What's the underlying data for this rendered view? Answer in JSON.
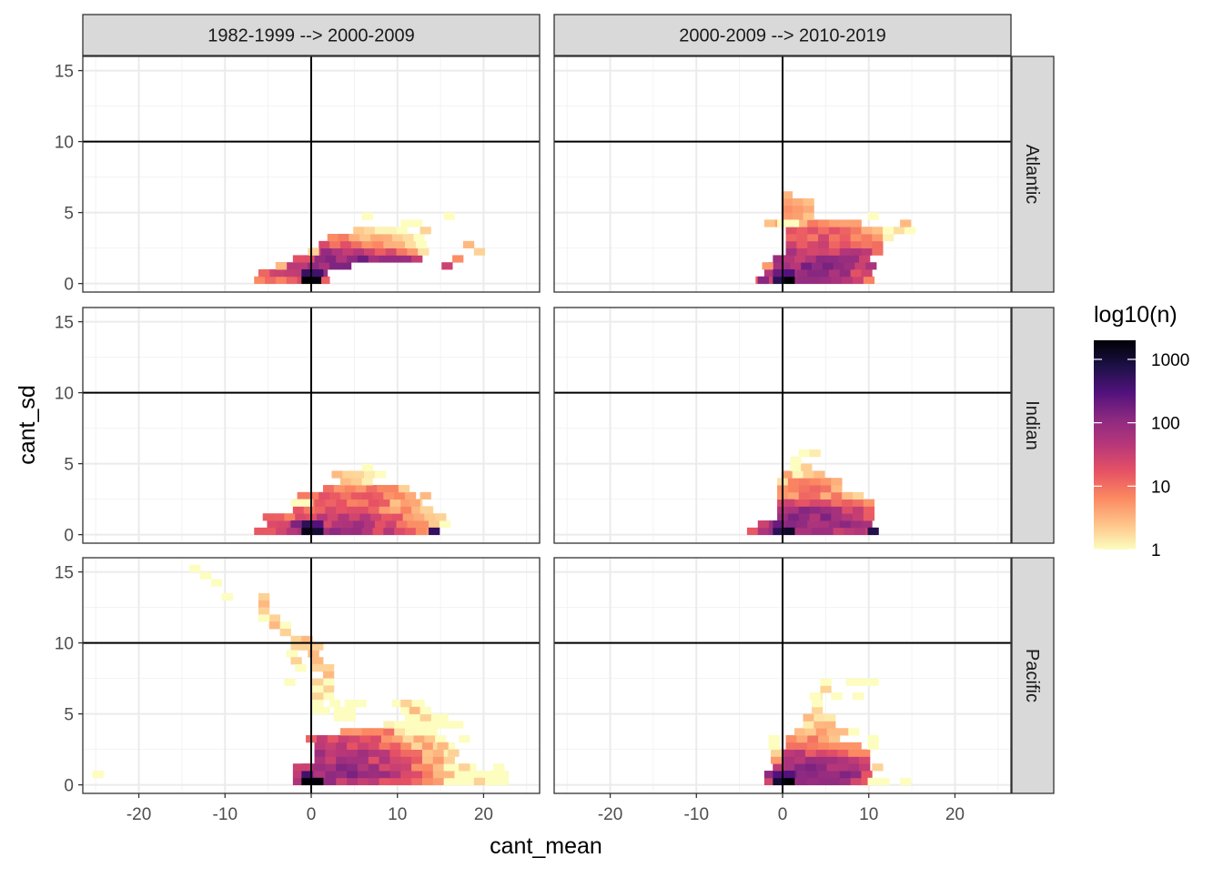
{
  "chart_data": {
    "type": "heatmap",
    "subtype": "faceted 2d-bin heatmap",
    "xlabel": "cant_mean",
    "ylabel": "cant_sd",
    "xlim": [
      -26.5,
      26.5
    ],
    "ylim": [
      -0.6,
      16.0
    ],
    "x_ticks": [
      -20,
      -10,
      0,
      10,
      20
    ],
    "y_ticks": [
      0,
      5,
      10,
      15
    ],
    "reference_lines": {
      "x": 0,
      "y": 10
    },
    "bin_width": {
      "x": 1.25,
      "y": 0.5
    },
    "facet_cols": [
      "1982-1999 --> 2000-2009",
      "2000-2009 --> 2010-2019"
    ],
    "facet_rows": [
      "Atlantic",
      "Indian",
      "Pacific"
    ],
    "legend": {
      "title": "log10(n)",
      "scale": "log10",
      "position": "right",
      "breaks": [
        1,
        10,
        100,
        1000
      ],
      "range": [
        1,
        2000
      ],
      "palette": [
        "#fcfdbf",
        "#fec287",
        "#fb8761",
        "#e65164",
        "#b73779",
        "#8c2981",
        "#51127c",
        "#1d1147",
        "#000004"
      ]
    },
    "panels": [
      {
        "row": "Atlantic",
        "col": "1982-1999 --> 2000-2009",
        "ranges": [
          [
            0.25,
            -6.0,
            1.5,
            2,
            30
          ],
          [
            0.75,
            -5.0,
            2.0,
            3,
            80
          ],
          [
            1.25,
            -3.5,
            4.0,
            5,
            150
          ],
          [
            1.75,
            -1.5,
            13.0,
            6,
            120
          ],
          [
            2.25,
            0.5,
            14.0,
            2,
            60
          ],
          [
            2.75,
            1.5,
            13.0,
            1.5,
            15
          ],
          [
            3.25,
            2.5,
            12.5,
            1.5,
            10
          ],
          [
            3.75,
            5.5,
            11.5,
            1,
            4
          ],
          [
            4.25,
            11.0,
            12.5,
            1,
            2
          ],
          [
            4.75,
            6.5,
            7.5,
            1,
            1
          ],
          [
            4.75,
            16.0,
            17.0,
            1,
            1
          ]
        ],
        "cells": [
          [
            -0.5,
            0.25,
            2000
          ],
          [
            0.5,
            0.25,
            1800
          ],
          [
            -0.5,
            0.75,
            500
          ],
          [
            0.75,
            0.75,
            400
          ],
          [
            0.25,
            2.25,
            2
          ],
          [
            -3.5,
            1.25,
            3
          ],
          [
            -5.5,
            0.75,
            12
          ],
          [
            19.5,
            2.25,
            2
          ],
          [
            18.25,
            2.75,
            3
          ],
          [
            17.0,
            1.75,
            6
          ],
          [
            15.75,
            1.25,
            30
          ],
          [
            13.25,
            3.75,
            2
          ]
        ]
      },
      {
        "row": "Atlantic",
        "col": "2000-2009 --> 2010-2019",
        "ranges": [
          [
            0.25,
            -2.5,
            10.5,
            3,
            60
          ],
          [
            0.75,
            -1.5,
            10.5,
            3,
            100
          ],
          [
            1.25,
            -1.0,
            10.5,
            4,
            110
          ],
          [
            1.75,
            -0.5,
            10.5,
            4,
            90
          ],
          [
            2.25,
            1.0,
            11.0,
            4,
            60
          ],
          [
            2.75,
            1.0,
            12.0,
            3,
            35
          ],
          [
            3.25,
            1.0,
            12.5,
            3,
            25
          ],
          [
            3.75,
            1.0,
            15.0,
            3,
            15
          ],
          [
            4.25,
            -1.5,
            9.0,
            2,
            8
          ],
          [
            4.75,
            0.5,
            4.0,
            2,
            5
          ],
          [
            5.25,
            0.5,
            4.0,
            1.5,
            4
          ],
          [
            5.75,
            0.5,
            3.0,
            1.5,
            3
          ],
          [
            6.25,
            0.5,
            1.5,
            1,
            2
          ]
        ],
        "cells": [
          [
            0.75,
            0.25,
            2000
          ],
          [
            -0.5,
            0.25,
            600
          ],
          [
            -0.5,
            0.75,
            200
          ],
          [
            0.75,
            0.75,
            300
          ],
          [
            -1.75,
            1.25,
            5
          ],
          [
            -2.25,
            0.25,
            120
          ],
          [
            14.25,
            4.25,
            3
          ],
          [
            10.5,
            4.75,
            1
          ],
          [
            0.0,
            4.25,
            1
          ],
          [
            1.25,
            4.25,
            1
          ]
        ]
      },
      {
        "row": "Indian",
        "col": "1982-1999 --> 2000-2009",
        "ranges": [
          [
            0.25,
            -6.0,
            14.0,
            3,
            70
          ],
          [
            0.75,
            -4.5,
            16.0,
            3,
            60
          ],
          [
            1.25,
            -5.0,
            15.0,
            3,
            40
          ],
          [
            1.75,
            -1.5,
            14.0,
            3,
            25
          ],
          [
            2.25,
            -1.5,
            12.5,
            3,
            20
          ],
          [
            2.75,
            -1.0,
            12.0,
            3,
            15
          ],
          [
            3.25,
            2.0,
            11.0,
            3,
            12
          ],
          [
            3.75,
            4.0,
            6.5,
            1.5,
            4
          ],
          [
            4.25,
            3.0,
            8.5,
            1.5,
            2
          ],
          [
            4.75,
            6.5,
            7.5,
            1,
            1
          ]
        ],
        "cells": [
          [
            -0.5,
            0.25,
            1500
          ],
          [
            0.75,
            0.25,
            1000
          ],
          [
            -0.5,
            0.75,
            600
          ],
          [
            0.75,
            0.75,
            300
          ],
          [
            -1.75,
            0.75,
            150
          ],
          [
            -1.75,
            2.25,
            1
          ],
          [
            -0.5,
            2.25,
            1
          ],
          [
            13.25,
            1.75,
            2
          ],
          [
            14.25,
            0.25,
            500
          ],
          [
            12.0,
            2.25,
            4
          ],
          [
            13.25,
            2.75,
            3
          ]
        ]
      },
      {
        "row": "Indian",
        "col": "2000-2009 --> 2010-2019",
        "ranges": [
          [
            0.25,
            -3.5,
            10.5,
            3,
            80
          ],
          [
            0.75,
            -1.5,
            10.5,
            3,
            120
          ],
          [
            1.25,
            0.0,
            10.5,
            3,
            110
          ],
          [
            1.75,
            0.0,
            10.5,
            3,
            80
          ],
          [
            2.25,
            0.0,
            10.5,
            2,
            25
          ],
          [
            2.75,
            0.0,
            9.0,
            2,
            12
          ],
          [
            3.25,
            0.0,
            6.5,
            2,
            8
          ],
          [
            3.75,
            0.0,
            6.5,
            2,
            5
          ],
          [
            4.25,
            0.5,
            4.5,
            1.5,
            3
          ],
          [
            4.75,
            1.5,
            3.5,
            1,
            2
          ],
          [
            5.25,
            1.5,
            2.5,
            1,
            1
          ],
          [
            5.75,
            2.5,
            4.0,
            1,
            1
          ]
        ],
        "cells": [
          [
            0.75,
            0.25,
            1200
          ],
          [
            -0.5,
            0.25,
            600
          ],
          [
            -0.5,
            0.75,
            200
          ],
          [
            10.5,
            0.25,
            700
          ],
          [
            -2.25,
            0.75,
            30
          ],
          [
            0.75,
            2.25,
            30
          ]
        ]
      },
      {
        "row": "Pacific",
        "col": "1982-1999 --> 2000-2009",
        "ranges": [
          [
            0.25,
            -1.5,
            23.0,
            3,
            80
          ],
          [
            0.75,
            -1.5,
            23.0,
            3,
            120
          ],
          [
            1.25,
            -1.5,
            19.5,
            3,
            100
          ],
          [
            1.75,
            1.0,
            16.0,
            3,
            80
          ],
          [
            2.25,
            1.0,
            16.0,
            3,
            60
          ],
          [
            2.75,
            1.0,
            16.0,
            3,
            40
          ],
          [
            3.25,
            0.0,
            16.0,
            3,
            25
          ],
          [
            3.75,
            4.0,
            15.0,
            3,
            15
          ],
          [
            4.25,
            9.0,
            17.0,
            1.5,
            4
          ],
          [
            4.75,
            11.5,
            16.0,
            1.5,
            3
          ],
          [
            5.25,
            11.0,
            12.5,
            1,
            2
          ],
          [
            5.75,
            10.0,
            12.5,
            1,
            1
          ]
        ],
        "cells": [
          [
            -0.5,
            0.25,
            2000
          ],
          [
            0.75,
            0.25,
            1800
          ],
          [
            -0.5,
            0.75,
            400
          ],
          [
            -0.5,
            1.25,
            30
          ],
          [
            20.5,
            0.75,
            1
          ],
          [
            21.75,
            1.25,
            1
          ],
          [
            19.5,
            0.25,
            2
          ],
          [
            17.75,
            1.25,
            2
          ],
          [
            16.5,
            2.25,
            2
          ],
          [
            17.75,
            3.25,
            1
          ],
          [
            15.25,
            2.75,
            3
          ],
          [
            17.0,
            4.25,
            1
          ],
          [
            -24.75,
            0.75,
            1
          ],
          [
            -13.5,
            15.25,
            1
          ],
          [
            -12.25,
            14.75,
            1
          ],
          [
            -11.0,
            14.25,
            1
          ],
          [
            -9.75,
            13.25,
            1
          ],
          [
            -5.5,
            13.25,
            2
          ],
          [
            -5.5,
            12.75,
            3
          ],
          [
            -5.5,
            12.25,
            2
          ],
          [
            -4.25,
            11.75,
            2
          ],
          [
            -5.5,
            11.75,
            1
          ],
          [
            -4.25,
            11.25,
            3
          ],
          [
            -3.0,
            11.25,
            1
          ],
          [
            -3.0,
            10.75,
            2
          ],
          [
            -1.75,
            10.25,
            2
          ],
          [
            -1.75,
            9.75,
            2
          ],
          [
            -0.5,
            10.25,
            3
          ],
          [
            -0.5,
            9.75,
            2
          ],
          [
            -2.25,
            9.25,
            1
          ],
          [
            -1.75,
            8.75,
            2
          ],
          [
            -1.25,
            8.25,
            1
          ],
          [
            0.25,
            9.25,
            3
          ],
          [
            0.75,
            9.75,
            2
          ],
          [
            0.75,
            8.75,
            3
          ],
          [
            0.75,
            8.25,
            2
          ],
          [
            2.0,
            8.25,
            2
          ],
          [
            2.0,
            7.75,
            3
          ],
          [
            2.0,
            7.25,
            1
          ],
          [
            2.0,
            6.75,
            2
          ],
          [
            2.0,
            6.25,
            1
          ],
          [
            0.75,
            7.25,
            2
          ],
          [
            0.75,
            6.75,
            1
          ],
          [
            0.75,
            6.25,
            2
          ],
          [
            0.75,
            5.75,
            1
          ],
          [
            1.5,
            5.25,
            1
          ],
          [
            2.75,
            5.75,
            1
          ],
          [
            3.25,
            5.25,
            1
          ],
          [
            4.5,
            5.75,
            1
          ],
          [
            4.5,
            5.25,
            1
          ],
          [
            5.75,
            5.75,
            1
          ],
          [
            3.25,
            4.75,
            1
          ],
          [
            4.5,
            4.75,
            1
          ],
          [
            -2.5,
            7.25,
            1
          ],
          [
            0.75,
            5.25,
            1
          ],
          [
            11.0,
            5.75,
            2
          ],
          [
            12.0,
            5.25,
            3
          ],
          [
            13.25,
            4.75,
            2
          ],
          [
            14.5,
            4.25,
            1
          ],
          [
            13.25,
            5.25,
            1
          ]
        ]
      },
      {
        "row": "Pacific",
        "col": "2000-2009 --> 2010-2019",
        "ranges": [
          [
            0.25,
            -1.5,
            10.5,
            3,
            80
          ],
          [
            0.75,
            -1.5,
            10.5,
            3,
            140
          ],
          [
            1.25,
            -0.5,
            10.5,
            3,
            90
          ],
          [
            1.75,
            -0.5,
            10.5,
            3,
            60
          ],
          [
            2.25,
            -0.5,
            10.5,
            2,
            30
          ],
          [
            2.75,
            1.0,
            9.0,
            2,
            15
          ],
          [
            3.25,
            1.0,
            7.0,
            2,
            8
          ],
          [
            3.75,
            2.0,
            7.5,
            2,
            5
          ],
          [
            4.25,
            3.0,
            6.0,
            2,
            3
          ],
          [
            4.75,
            3.0,
            5.5,
            1.5,
            2
          ],
          [
            5.25,
            4.0,
            5.0,
            1,
            2
          ],
          [
            5.75,
            4.0,
            5.0,
            1,
            2
          ],
          [
            6.25,
            4.0,
            5.0,
            1,
            1
          ]
        ],
        "cells": [
          [
            0.75,
            0.25,
            2000
          ],
          [
            -0.5,
            0.25,
            1000
          ],
          [
            -0.5,
            0.75,
            300
          ],
          [
            0.75,
            0.75,
            300
          ],
          [
            -0.5,
            1.25,
            40
          ],
          [
            -0.75,
            1.75,
            5
          ],
          [
            -0.75,
            2.25,
            2
          ],
          [
            -1.0,
            2.75,
            1
          ],
          [
            -1.0,
            3.25,
            1
          ],
          [
            10.5,
            0.25,
            1
          ],
          [
            11.75,
            0.25,
            1
          ],
          [
            14.25,
            0.25,
            1
          ],
          [
            8.0,
            7.25,
            1
          ],
          [
            9.25,
            7.25,
            1
          ],
          [
            10.5,
            7.25,
            1
          ],
          [
            8.75,
            6.25,
            1
          ],
          [
            10.5,
            3.25,
            1
          ],
          [
            10.5,
            2.75,
            1
          ],
          [
            11.0,
            1.25,
            2
          ],
          [
            8.25,
            3.75,
            1
          ],
          [
            5.0,
            6.75,
            2
          ],
          [
            5.0,
            7.25,
            1
          ],
          [
            6.25,
            6.25,
            1
          ],
          [
            3.75,
            6.25,
            1
          ]
        ]
      }
    ]
  }
}
